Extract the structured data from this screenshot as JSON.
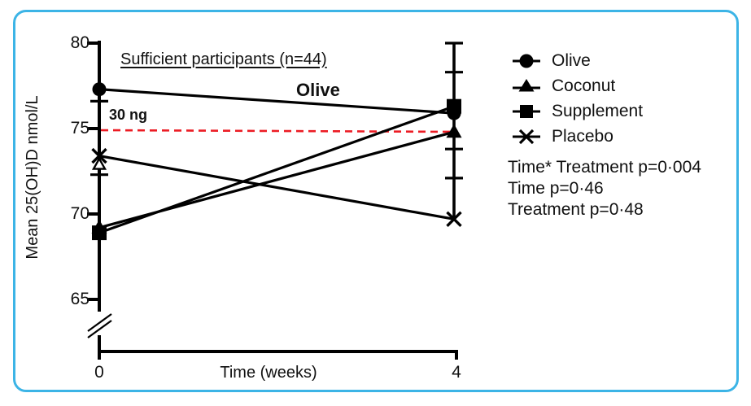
{
  "figure": {
    "border_color": "#3CB4E6",
    "background_color": "#FFFFFF",
    "accent_pink": "#ED2D64",
    "reference_red": "#EC1C24"
  },
  "annotations": {
    "heading": "Sufficient participants (n=44)",
    "olive_line_label": "Olive",
    "reference_label": "30 ng"
  },
  "axes": {
    "ylabel": "Mean 25(OH)D nmol/L",
    "xlabel": "Time (weeks)",
    "y_ticks": [
      "80",
      "75",
      "70",
      "65"
    ],
    "x_ticks": [
      "0",
      "4"
    ]
  },
  "legend": {
    "items": [
      {
        "label": "Olive",
        "marker": "circle"
      },
      {
        "label": "Coconut",
        "marker": "triangle"
      },
      {
        "label": "Supplement",
        "marker": "square"
      },
      {
        "label": "Placebo",
        "marker": "x"
      }
    ]
  },
  "stats": {
    "line1": "Time* Treatment p=0·004",
    "line2": "Time p=0·46",
    "line3": "Treatment p=0·48"
  },
  "chart_data": {
    "type": "line",
    "x": [
      0,
      4
    ],
    "x_unit": "weeks",
    "xlabel": "Time (weeks)",
    "ylabel": "Mean 25(OH)D nmol/L",
    "ylim_visible": [
      65,
      80
    ],
    "axis_break_below": 65,
    "grid": false,
    "legend_position": "right",
    "series": [
      {
        "name": "Olive",
        "marker": "circle",
        "values": [
          77.3,
          75.9
        ]
      },
      {
        "name": "Coconut",
        "marker": "triangle",
        "values": [
          69.2,
          74.8
        ]
      },
      {
        "name": "Supplement",
        "marker": "square",
        "values": [
          68.9,
          76.3
        ]
      },
      {
        "name": "Placebo",
        "marker": "x",
        "values": [
          73.4,
          69.7
        ]
      }
    ],
    "reference_line": {
      "value": 75,
      "label": "30 ng",
      "style": "dashed"
    },
    "error_caps": {
      "week0": [
        76.6,
        72.3
      ],
      "week4": [
        80.0,
        78.3,
        73.8,
        72.1
      ]
    },
    "week4_error_bar_extent": [
      80.0,
      69.7
    ],
    "extra_markers": [
      {
        "shape": "open-triangle",
        "week": 0,
        "value": 72.9
      }
    ],
    "stats_text": [
      "Time* Treatment p=0·004",
      "Time p=0·46",
      "Treatment p=0·48"
    ]
  }
}
